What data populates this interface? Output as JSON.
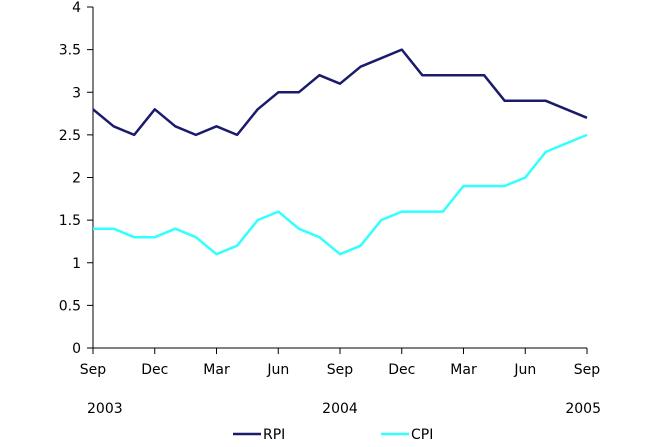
{
  "chart_data": {
    "type": "line",
    "title": "",
    "xlabel": "",
    "ylabel": "",
    "ylim": [
      0,
      4
    ],
    "yticks": [
      "0",
      "0.5",
      "1",
      "1.5",
      "2",
      "2.5",
      "3",
      "3.5",
      "4"
    ],
    "xticks": [
      "Sep",
      "Dec",
      "Mar",
      "Jun",
      "Sep",
      "Dec",
      "Mar",
      "Jun",
      "Sep"
    ],
    "years": [
      "2003",
      "2004",
      "2005"
    ],
    "grid": false,
    "legend_position": "bottom",
    "x": [
      "2003-09",
      "2003-10",
      "2003-11",
      "2003-12",
      "2004-01",
      "2004-02",
      "2004-03",
      "2004-04",
      "2004-05",
      "2004-06",
      "2004-07",
      "2004-08",
      "2004-09",
      "2004-10",
      "2004-11",
      "2004-12",
      "2005-01",
      "2005-02",
      "2005-03",
      "2005-04",
      "2005-05",
      "2005-06",
      "2005-07",
      "2005-08",
      "2005-09"
    ],
    "series": [
      {
        "name": "RPI",
        "color": "#1b1b6b",
        "values": [
          2.8,
          2.6,
          2.5,
          2.8,
          2.6,
          2.5,
          2.6,
          2.5,
          2.8,
          3.0,
          3.0,
          3.2,
          3.1,
          3.3,
          3.4,
          3.5,
          3.2,
          3.2,
          3.2,
          3.2,
          2.9,
          2.9,
          2.9,
          2.8,
          2.7
        ]
      },
      {
        "name": "CPI",
        "color": "#33ffff",
        "values": [
          1.4,
          1.4,
          1.3,
          1.3,
          1.4,
          1.3,
          1.1,
          1.2,
          1.5,
          1.6,
          1.4,
          1.3,
          1.1,
          1.2,
          1.5,
          1.6,
          1.6,
          1.6,
          1.9,
          1.9,
          1.9,
          2.0,
          2.3,
          2.4,
          2.5
        ]
      }
    ]
  }
}
